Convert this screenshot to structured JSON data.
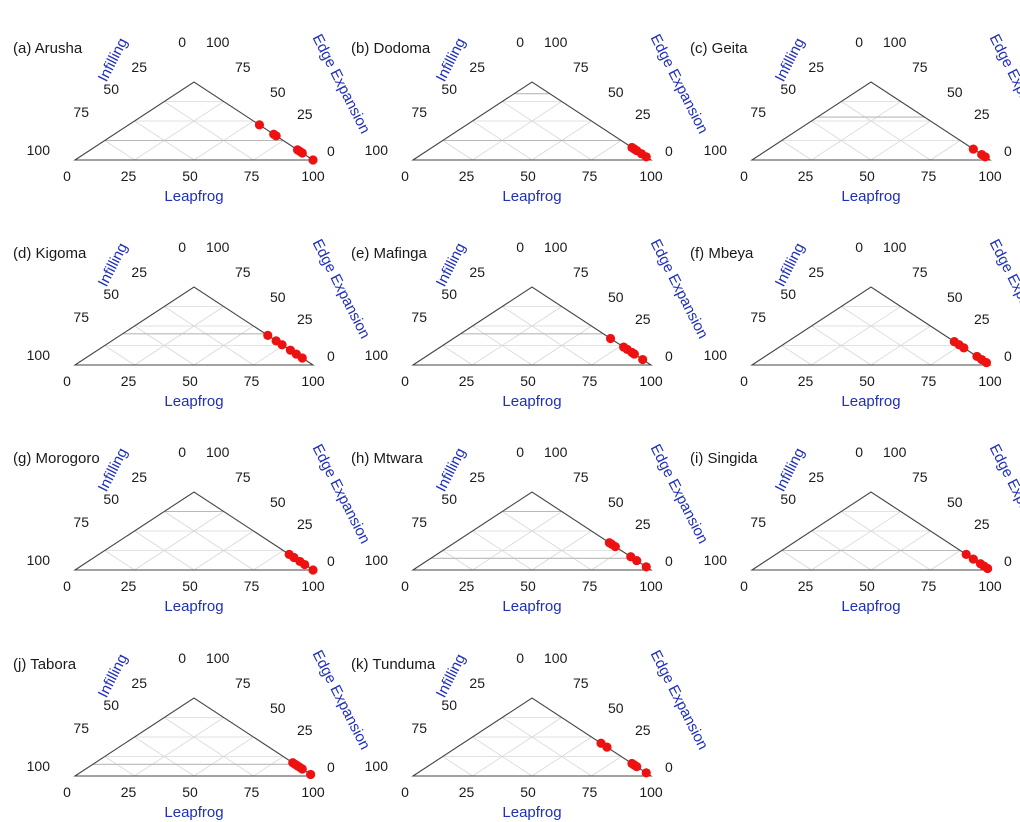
{
  "axes": {
    "a_label": "Leapfrog",
    "b_label": "Edge Expansion",
    "c_label": "Infilling",
    "ticks": [
      "0",
      "25",
      "50",
      "75",
      "100"
    ]
  },
  "colors": {
    "point": "#ee1111",
    "axis_title": "#1f2fb8",
    "triangle": "#444444",
    "grid": "#d8d8d8",
    "ref_line": "#b8b8b8"
  },
  "chart_data": [
    {
      "type": "scatter",
      "subtype": "ternary",
      "title": "(a) Arusha",
      "points": [
        {
          "leapfrog": 55,
          "edge_expansion": 45,
          "infilling": 0
        },
        {
          "leapfrog": 67,
          "edge_expansion": 33,
          "infilling": 0
        },
        {
          "leapfrog": 69,
          "edge_expansion": 31,
          "infilling": 0
        },
        {
          "leapfrog": 87,
          "edge_expansion": 13,
          "infilling": 0
        },
        {
          "leapfrog": 89,
          "edge_expansion": 11,
          "infilling": 0
        },
        {
          "leapfrog": 91,
          "edge_expansion": 9,
          "infilling": 0
        },
        {
          "leapfrog": 100,
          "edge_expansion": 0,
          "infilling": 0
        }
      ],
      "reference_lines_infilling": [
        75
      ]
    },
    {
      "type": "scatter",
      "subtype": "ternary",
      "title": "(b) Dodoma",
      "points": [
        {
          "leapfrog": 84,
          "edge_expansion": 16,
          "infilling": 0
        },
        {
          "leapfrog": 86,
          "edge_expansion": 14,
          "infilling": 0
        },
        {
          "leapfrog": 88,
          "edge_expansion": 12,
          "infilling": 0
        },
        {
          "leapfrog": 92,
          "edge_expansion": 8,
          "infilling": 0
        },
        {
          "leapfrog": 96,
          "edge_expansion": 4,
          "infilling": 0
        }
      ],
      "reference_lines_infilling": [
        15,
        75
      ]
    },
    {
      "type": "scatter",
      "subtype": "ternary",
      "title": "(c) Geita",
      "points": [
        {
          "leapfrog": 86,
          "edge_expansion": 14,
          "infilling": 0
        },
        {
          "leapfrog": 93,
          "edge_expansion": 7,
          "infilling": 0
        },
        {
          "leapfrog": 96,
          "edge_expansion": 4,
          "infilling": 0
        }
      ],
      "reference_lines_infilling": [
        45
      ]
    },
    {
      "type": "scatter",
      "subtype": "ternary",
      "title": "(d) Kigoma",
      "points": [
        {
          "leapfrog": 62,
          "edge_expansion": 38,
          "infilling": 0
        },
        {
          "leapfrog": 69,
          "edge_expansion": 31,
          "infilling": 0
        },
        {
          "leapfrog": 74,
          "edge_expansion": 26,
          "infilling": 0
        },
        {
          "leapfrog": 81,
          "edge_expansion": 19,
          "infilling": 0
        },
        {
          "leapfrog": 86,
          "edge_expansion": 14,
          "infilling": 0
        },
        {
          "leapfrog": 91,
          "edge_expansion": 9,
          "infilling": 0
        }
      ],
      "reference_lines_infilling": [
        60
      ]
    },
    {
      "type": "scatter",
      "subtype": "ternary",
      "title": "(e) Mafinga",
      "points": [
        {
          "leapfrog": 66,
          "edge_expansion": 34,
          "infilling": 0
        },
        {
          "leapfrog": 77,
          "edge_expansion": 23,
          "infilling": 0
        },
        {
          "leapfrog": 80,
          "edge_expansion": 20,
          "infilling": 0
        },
        {
          "leapfrog": 84,
          "edge_expansion": 16,
          "infilling": 0
        },
        {
          "leapfrog": 86,
          "edge_expansion": 14,
          "infilling": 0
        },
        {
          "leapfrog": 93,
          "edge_expansion": 7,
          "infilling": 0
        }
      ],
      "reference_lines_infilling": [
        60
      ]
    },
    {
      "type": "scatter",
      "subtype": "ternary",
      "title": "(f) Mbeya",
      "points": [
        {
          "leapfrog": 70,
          "edge_expansion": 30,
          "infilling": 0
        },
        {
          "leapfrog": 74,
          "edge_expansion": 26,
          "infilling": 0
        },
        {
          "leapfrog": 78,
          "edge_expansion": 22,
          "infilling": 0
        },
        {
          "leapfrog": 89,
          "edge_expansion": 11,
          "infilling": 0
        },
        {
          "leapfrog": 93,
          "edge_expansion": 7,
          "infilling": 0
        },
        {
          "leapfrog": 97,
          "edge_expansion": 3,
          "infilling": 0
        }
      ],
      "reference_lines_infilling": []
    },
    {
      "type": "scatter",
      "subtype": "ternary",
      "title": "(g) Morogoro",
      "points": [
        {
          "leapfrog": 80,
          "edge_expansion": 20,
          "infilling": 0
        },
        {
          "leapfrog": 84,
          "edge_expansion": 16,
          "infilling": 0
        },
        {
          "leapfrog": 89,
          "edge_expansion": 11,
          "infilling": 0
        },
        {
          "leapfrog": 93,
          "edge_expansion": 7,
          "infilling": 0
        },
        {
          "leapfrog": 100,
          "edge_expansion": 0,
          "infilling": 0
        }
      ],
      "reference_lines_infilling": [
        25
      ]
    },
    {
      "type": "scatter",
      "subtype": "ternary",
      "title": "(h) Mtwara",
      "points": [
        {
          "leapfrog": 65,
          "edge_expansion": 35,
          "infilling": 0
        },
        {
          "leapfrog": 67,
          "edge_expansion": 33,
          "infilling": 0
        },
        {
          "leapfrog": 70,
          "edge_expansion": 30,
          "infilling": 0
        },
        {
          "leapfrog": 83,
          "edge_expansion": 17,
          "infilling": 0
        },
        {
          "leapfrog": 88,
          "edge_expansion": 12,
          "infilling": 0
        },
        {
          "leapfrog": 96,
          "edge_expansion": 4,
          "infilling": 0
        }
      ],
      "reference_lines_infilling": [
        25,
        85
      ]
    },
    {
      "type": "scatter",
      "subtype": "ternary",
      "title": "(i) Singida",
      "points": [
        {
          "leapfrog": 80,
          "edge_expansion": 20,
          "infilling": 0
        },
        {
          "leapfrog": 86,
          "edge_expansion": 14,
          "infilling": 0
        },
        {
          "leapfrog": 92,
          "edge_expansion": 8,
          "infilling": 0
        },
        {
          "leapfrog": 95,
          "edge_expansion": 5,
          "infilling": 0
        },
        {
          "leapfrog": 98,
          "edge_expansion": 2,
          "infilling": 0
        }
      ],
      "reference_lines_infilling": [
        75
      ]
    },
    {
      "type": "scatter",
      "subtype": "ternary",
      "title": "(j) Tabora",
      "points": [
        {
          "leapfrog": 83,
          "edge_expansion": 17,
          "infilling": 0
        },
        {
          "leapfrog": 85,
          "edge_expansion": 15,
          "infilling": 0
        },
        {
          "leapfrog": 87,
          "edge_expansion": 13,
          "infilling": 0
        },
        {
          "leapfrog": 89,
          "edge_expansion": 11,
          "infilling": 0
        },
        {
          "leapfrog": 91,
          "edge_expansion": 9,
          "infilling": 0
        },
        {
          "leapfrog": 98,
          "edge_expansion": 2,
          "infilling": 0
        }
      ],
      "reference_lines_infilling": [
        85
      ]
    },
    {
      "type": "scatter",
      "subtype": "ternary",
      "title": "(k) Tunduma",
      "points": [
        {
          "leapfrog": 58,
          "edge_expansion": 42,
          "infilling": 0
        },
        {
          "leapfrog": 63,
          "edge_expansion": 37,
          "infilling": 0
        },
        {
          "leapfrog": 84,
          "edge_expansion": 16,
          "infilling": 0
        },
        {
          "leapfrog": 86,
          "edge_expansion": 14,
          "infilling": 0
        },
        {
          "leapfrog": 88,
          "edge_expansion": 12,
          "infilling": 0
        },
        {
          "leapfrog": 96,
          "edge_expansion": 4,
          "infilling": 0
        }
      ],
      "reference_lines_infilling": []
    }
  ]
}
